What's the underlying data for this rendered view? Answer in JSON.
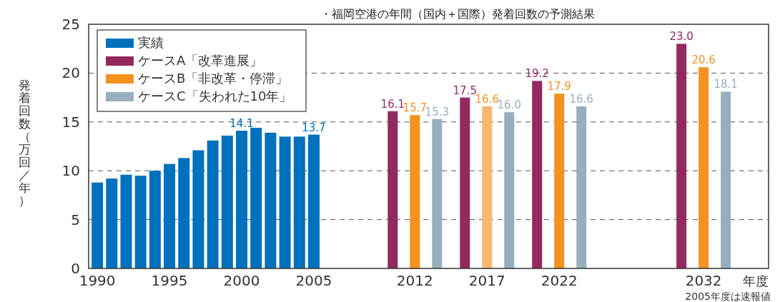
{
  "chart_data": {
    "type": "bar",
    "title": "・福岡空港の年間（国内＋国際）発着回数の予測結果",
    "ylabel": "発着回数（万回／年）",
    "xlabel": "年度",
    "annotations": [
      "2005年度は速報値"
    ],
    "xlim": [
      1989.4,
      2036.5
    ],
    "xticks": [
      1990,
      1995,
      2000,
      2005,
      2012,
      2017,
      2022,
      2032
    ],
    "ylim": [
      0,
      25
    ],
    "yticks": [
      0,
      5,
      10,
      15,
      20,
      25
    ],
    "grid": "y",
    "legend": "top left",
    "series": [
      {
        "name": "実績",
        "color": "#0071bc",
        "x": [
          1990,
          1991,
          1992,
          1993,
          1994,
          1995,
          1996,
          1997,
          1998,
          1999,
          2000,
          2001,
          2002,
          2003,
          2004,
          2005
        ],
        "values": [
          8.8,
          9.2,
          9.6,
          9.5,
          10.0,
          10.7,
          11.3,
          12.1,
          13.1,
          13.6,
          14.1,
          14.4,
          13.9,
          13.5,
          13.5,
          13.7
        ],
        "value_labels": [
          null,
          null,
          null,
          null,
          null,
          null,
          null,
          null,
          null,
          null,
          "14.1",
          null,
          null,
          null,
          null,
          "13.7"
        ]
      },
      {
        "name": "ケースA「改革進展」",
        "color": "#93295e",
        "x": [
          2012,
          2017,
          2022,
          2032
        ],
        "values": [
          16.1,
          17.5,
          19.2,
          23.0
        ],
        "value_labels": [
          "16.1",
          "17.5",
          "19.2",
          "23.0"
        ]
      },
      {
        "name": "ケースB「非改革・停滞」",
        "color": "#f39220",
        "colors": [
          "#f39220",
          "#f9b870",
          "#f39220",
          "#f39220"
        ],
        "x": [
          2012,
          2017,
          2022,
          2032
        ],
        "values": [
          15.7,
          16.6,
          17.9,
          20.6
        ],
        "value_labels": [
          "15.7",
          "16.6",
          "17.9",
          "20.6"
        ]
      },
      {
        "name": "ケースC「失われた10年」",
        "color": "#97afbd",
        "x": [
          2012,
          2017,
          2022,
          2032
        ],
        "values": [
          15.3,
          16.0,
          16.6,
          18.1
        ],
        "value_labels": [
          "15.3",
          "16.0",
          "16.6",
          "18.1"
        ]
      }
    ]
  }
}
